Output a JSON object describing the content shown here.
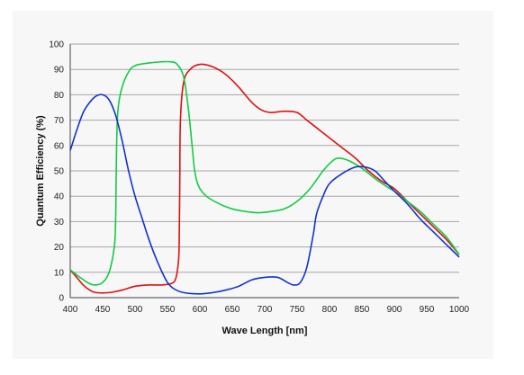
{
  "chart_data": {
    "type": "line",
    "title": "",
    "xlabel": "Wave Length [nm]",
    "ylabel": "Quantum Efficiency (%)",
    "xlim": [
      400,
      1000
    ],
    "ylim": [
      0,
      100
    ],
    "x_ticks": [
      400,
      450,
      500,
      550,
      600,
      650,
      700,
      750,
      800,
      850,
      900,
      950,
      1000
    ],
    "y_ticks": [
      0,
      10,
      20,
      30,
      40,
      50,
      60,
      70,
      80,
      90,
      100
    ],
    "grid": "horizontal",
    "legend": "none",
    "series": [
      {
        "color": "#dd1111",
        "points": [
          [
            400,
            11
          ],
          [
            410,
            8
          ],
          [
            420,
            5
          ],
          [
            430,
            3
          ],
          [
            440,
            2
          ],
          [
            460,
            2
          ],
          [
            480,
            3
          ],
          [
            500,
            4.5
          ],
          [
            520,
            5
          ],
          [
            540,
            5
          ],
          [
            555,
            5.5
          ],
          [
            562,
            7
          ],
          [
            566,
            12
          ],
          [
            568,
            20
          ],
          [
            569,
            45
          ],
          [
            570,
            70
          ],
          [
            575,
            85
          ],
          [
            585,
            90
          ],
          [
            600,
            92
          ],
          [
            620,
            91
          ],
          [
            640,
            88
          ],
          [
            660,
            83
          ],
          [
            680,
            77
          ],
          [
            695,
            74
          ],
          [
            710,
            73
          ],
          [
            730,
            73.5
          ],
          [
            750,
            73
          ],
          [
            765,
            70
          ],
          [
            780,
            67
          ],
          [
            800,
            63
          ],
          [
            820,
            59
          ],
          [
            840,
            55
          ],
          [
            860,
            50
          ],
          [
            880,
            46
          ],
          [
            900,
            43
          ],
          [
            920,
            38
          ],
          [
            940,
            33
          ],
          [
            960,
            28
          ],
          [
            980,
            23
          ],
          [
            1000,
            17
          ]
        ]
      },
      {
        "color": "#11cc44",
        "points": [
          [
            400,
            11
          ],
          [
            415,
            8
          ],
          [
            430,
            5.5
          ],
          [
            440,
            5
          ],
          [
            450,
            6
          ],
          [
            460,
            10
          ],
          [
            468,
            20
          ],
          [
            470,
            30
          ],
          [
            471,
            50
          ],
          [
            472,
            65
          ],
          [
            474,
            75
          ],
          [
            480,
            83
          ],
          [
            490,
            89
          ],
          [
            500,
            91.5
          ],
          [
            520,
            92.5
          ],
          [
            540,
            93
          ],
          [
            555,
            93
          ],
          [
            565,
            92
          ],
          [
            575,
            87
          ],
          [
            582,
            75
          ],
          [
            588,
            60
          ],
          [
            592,
            50
          ],
          [
            598,
            44
          ],
          [
            610,
            40
          ],
          [
            630,
            37
          ],
          [
            650,
            35
          ],
          [
            670,
            34
          ],
          [
            690,
            33.5
          ],
          [
            710,
            34
          ],
          [
            730,
            35
          ],
          [
            750,
            38
          ],
          [
            770,
            43
          ],
          [
            790,
            50
          ],
          [
            805,
            54
          ],
          [
            815,
            55
          ],
          [
            830,
            54
          ],
          [
            850,
            51
          ],
          [
            870,
            47
          ],
          [
            890,
            43.5
          ],
          [
            900,
            42
          ],
          [
            920,
            38
          ],
          [
            940,
            34
          ],
          [
            960,
            29
          ],
          [
            980,
            24
          ],
          [
            1000,
            17
          ]
        ]
      },
      {
        "color": "#1133cc",
        "points": [
          [
            400,
            58
          ],
          [
            410,
            66
          ],
          [
            420,
            73
          ],
          [
            430,
            77
          ],
          [
            440,
            79.5
          ],
          [
            450,
            80
          ],
          [
            460,
            78
          ],
          [
            470,
            72
          ],
          [
            480,
            62
          ],
          [
            490,
            50
          ],
          [
            500,
            40
          ],
          [
            510,
            32
          ],
          [
            520,
            24
          ],
          [
            530,
            17
          ],
          [
            540,
            11
          ],
          [
            550,
            6
          ],
          [
            560,
            3.5
          ],
          [
            575,
            2
          ],
          [
            600,
            1.5
          ],
          [
            620,
            2
          ],
          [
            640,
            3
          ],
          [
            660,
            4.5
          ],
          [
            680,
            7
          ],
          [
            700,
            8
          ],
          [
            720,
            8
          ],
          [
            735,
            6
          ],
          [
            745,
            5
          ],
          [
            755,
            6
          ],
          [
            765,
            12
          ],
          [
            775,
            25
          ],
          [
            780,
            33
          ],
          [
            790,
            40
          ],
          [
            800,
            45
          ],
          [
            820,
            49
          ],
          [
            840,
            51.5
          ],
          [
            855,
            51.5
          ],
          [
            870,
            50
          ],
          [
            885,
            46
          ],
          [
            900,
            42
          ],
          [
            920,
            37
          ],
          [
            940,
            31
          ],
          [
            960,
            26
          ],
          [
            980,
            21
          ],
          [
            1000,
            16
          ]
        ]
      }
    ]
  }
}
